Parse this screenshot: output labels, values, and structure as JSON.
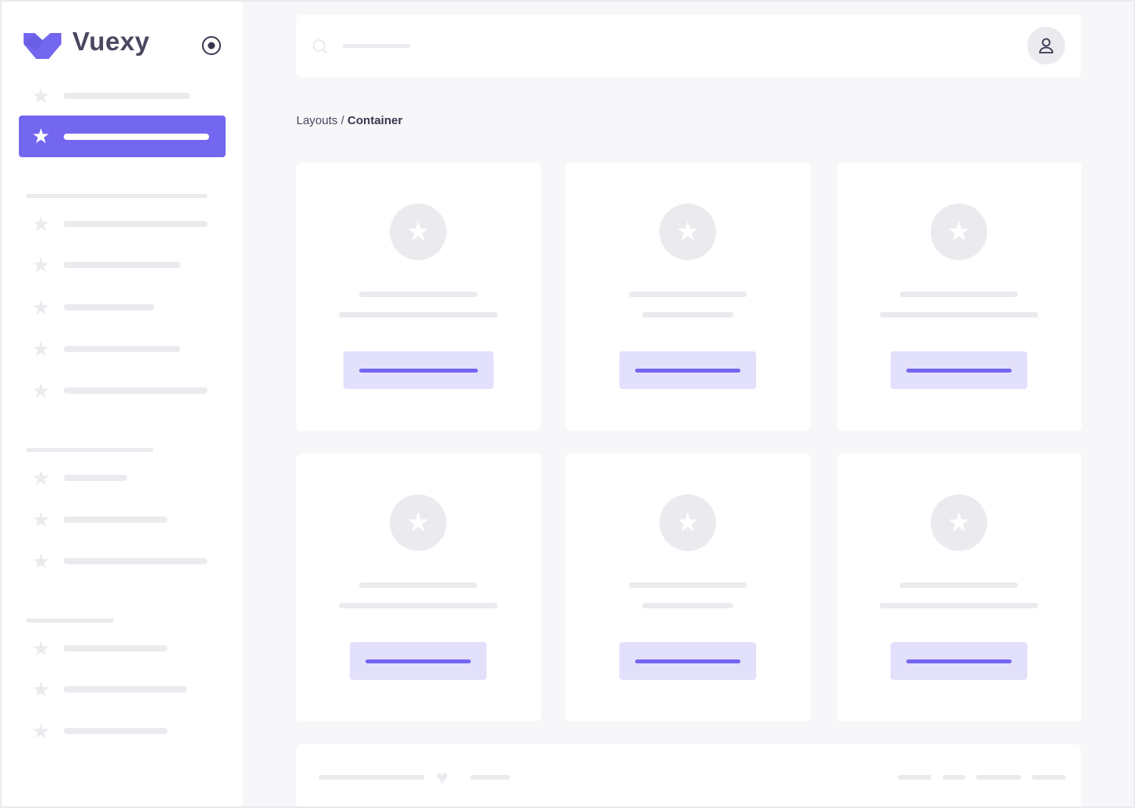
{
  "brand": {
    "name": "Vuexy",
    "color": "#7367f0"
  },
  "breadcrumb": {
    "parent": "Layouts /",
    "current": "Container"
  },
  "icons": {
    "logo": "vuexy-logo",
    "pin": "radio-circle-icon",
    "nav": "star-icon",
    "user": "user-icon",
    "search": "search-icon",
    "footer": "heart-icon"
  },
  "colors": {
    "primary": "#7367f0",
    "primary_light": "#e3e0fc",
    "skeleton": "#ebebef",
    "background": "#f7f7f9",
    "text": "#4b4760"
  }
}
